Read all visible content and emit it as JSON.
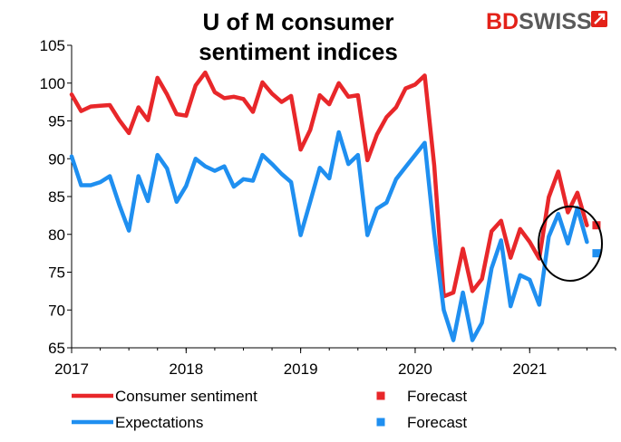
{
  "brand": {
    "name_part1": "BD",
    "name_part2": "SWISS",
    "colors": {
      "part1": "#e32219",
      "part2": "#5a5a5a",
      "mark": "#e32219"
    }
  },
  "chart_data": {
    "type": "line",
    "title_lines": [
      "U of M consumer",
      "sentiment indices"
    ],
    "xlabel": "",
    "ylabel": "",
    "x_ticks": [
      "2017",
      "2018",
      "2019",
      "2020",
      "2021"
    ],
    "y_ticks": [
      "65",
      "70",
      "75",
      "80",
      "85",
      "90",
      "95",
      "100",
      "105"
    ],
    "ylim": [
      65,
      105
    ],
    "grid": false,
    "legend_position": "bottom",
    "x_start_date": "2017-01",
    "x_end_date": "2021-10",
    "series": [
      {
        "name": "Consumer sentiment",
        "color": "#e8272a",
        "dates": [
          "2017-01",
          "2017-02",
          "2017-03",
          "2017-04",
          "2017-05",
          "2017-06",
          "2017-07",
          "2017-08",
          "2017-09",
          "2017-10",
          "2017-11",
          "2017-12",
          "2018-01",
          "2018-02",
          "2018-03",
          "2018-04",
          "2018-05",
          "2018-06",
          "2018-07",
          "2018-08",
          "2018-09",
          "2018-10",
          "2018-11",
          "2018-12",
          "2019-01",
          "2019-02",
          "2019-03",
          "2019-04",
          "2019-05",
          "2019-06",
          "2019-07",
          "2019-08",
          "2019-09",
          "2019-10",
          "2019-11",
          "2019-12",
          "2020-01",
          "2020-02",
          "2020-03",
          "2020-04",
          "2020-05",
          "2020-06",
          "2020-07",
          "2020-08",
          "2020-09",
          "2020-10",
          "2020-11",
          "2020-12",
          "2021-01",
          "2021-02",
          "2021-03",
          "2021-04",
          "2021-05",
          "2021-06",
          "2021-07"
        ],
        "values": [
          98.5,
          96.3,
          96.9,
          97.0,
          97.1,
          95.1,
          93.4,
          96.8,
          95.1,
          100.7,
          98.5,
          95.9,
          95.7,
          99.7,
          101.4,
          98.8,
          98.0,
          98.2,
          97.9,
          96.2,
          100.1,
          98.6,
          97.5,
          98.3,
          91.2,
          93.8,
          98.4,
          97.2,
          100.0,
          98.2,
          98.4,
          89.8,
          93.2,
          95.5,
          96.8,
          99.3,
          99.8,
          101.0,
          89.1,
          71.8,
          72.3,
          78.1,
          72.5,
          74.1,
          80.4,
          81.8,
          76.9,
          80.7,
          79.0,
          76.8,
          84.9,
          88.3,
          82.9,
          85.5,
          81.2
        ],
        "forecast": {
          "date": "2021-08",
          "value": 81.2,
          "label": "Forecast"
        }
      },
      {
        "name": "Expectations",
        "color": "#1f8ff0",
        "dates": [
          "2017-01",
          "2017-02",
          "2017-03",
          "2017-04",
          "2017-05",
          "2017-06",
          "2017-07",
          "2017-08",
          "2017-09",
          "2017-10",
          "2017-11",
          "2017-12",
          "2018-01",
          "2018-02",
          "2018-03",
          "2018-04",
          "2018-05",
          "2018-06",
          "2018-07",
          "2018-08",
          "2018-09",
          "2018-10",
          "2018-11",
          "2018-12",
          "2019-01",
          "2019-02",
          "2019-03",
          "2019-04",
          "2019-05",
          "2019-06",
          "2019-07",
          "2019-08",
          "2019-09",
          "2019-10",
          "2019-11",
          "2019-12",
          "2020-01",
          "2020-02",
          "2020-03",
          "2020-04",
          "2020-05",
          "2020-06",
          "2020-07",
          "2020-08",
          "2020-09",
          "2020-10",
          "2020-11",
          "2020-12",
          "2021-01",
          "2021-02",
          "2021-03",
          "2021-04",
          "2021-05",
          "2021-06",
          "2021-07"
        ],
        "values": [
          90.3,
          86.5,
          86.5,
          86.9,
          87.7,
          83.9,
          80.5,
          87.7,
          84.4,
          90.5,
          88.7,
          84.3,
          86.4,
          90.0,
          89.0,
          88.4,
          89.0,
          86.3,
          87.3,
          87.1,
          90.5,
          89.3,
          88.0,
          86.9,
          79.9,
          84.3,
          88.8,
          87.4,
          93.5,
          89.3,
          90.5,
          79.9,
          83.4,
          84.2,
          87.3,
          88.9,
          90.5,
          92.1,
          80.0,
          70.0,
          66.0,
          72.3,
          66.0,
          68.3,
          75.5,
          79.2,
          70.5,
          74.6,
          74.0,
          70.7,
          79.7,
          82.7,
          78.8,
          83.5,
          79.0
        ],
        "forecast": {
          "date": "2021-08",
          "value": 77.5,
          "label": "Forecast"
        }
      }
    ],
    "annotations": [
      {
        "type": "ellipse",
        "around": "forecast points",
        "color": "#000000"
      }
    ]
  }
}
